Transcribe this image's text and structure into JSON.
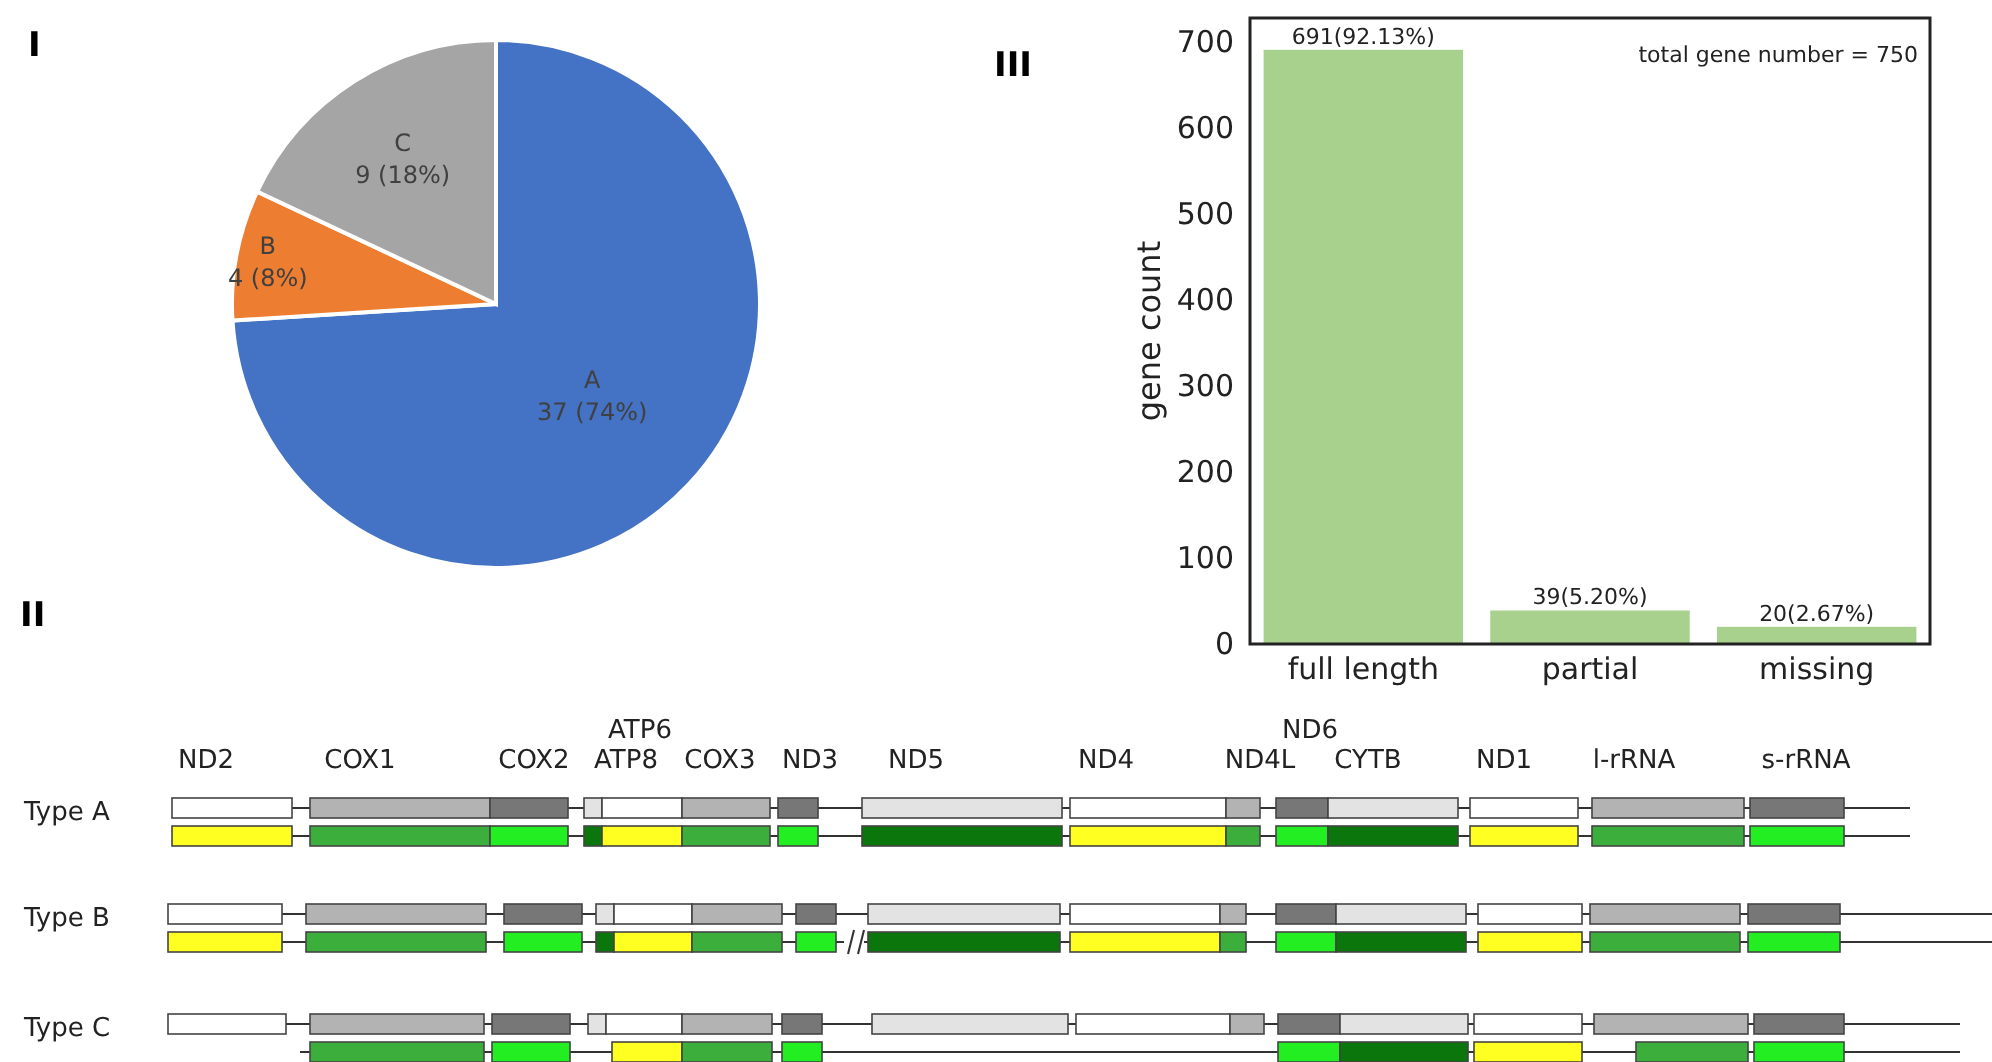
{
  "chart_data": [
    {
      "type": "pie",
      "title": "I",
      "categories": [
        "A",
        "B",
        "C"
      ],
      "values": [
        37,
        4,
        9
      ],
      "value_labels": [
        "37 (74%)",
        "4 (8%)",
        "9 (18%)"
      ],
      "colors": [
        "#4472c4",
        "#ed7d31",
        "#a5a5a5"
      ]
    },
    {
      "type": "bar",
      "title": "III",
      "categories": [
        "full length",
        "partial",
        "missing"
      ],
      "values": [
        691,
        39,
        20
      ],
      "value_labels": [
        "691(92.13%)",
        "39(5.20%)",
        "20(2.67%)"
      ],
      "color": "#a9d18e",
      "ylabel": "gene count",
      "ylim": [
        0,
        728
      ],
      "yticks": [
        0,
        100,
        200,
        300,
        400,
        500,
        600,
        700
      ],
      "annotations": [
        "total gene number = 750"
      ]
    },
    {
      "type": "other",
      "title": "II",
      "annotations": [
        "ND2",
        "COX1",
        "COX2",
        "ATP6",
        "ATP8",
        "COX3",
        "ND3",
        "ND5",
        "ND4",
        "ND6",
        "ND4L",
        "CYTB",
        "ND1",
        "l-rRNA",
        "s-rRNA",
        "Type A",
        "Type B",
        "Type C"
      ]
    }
  ]
}
